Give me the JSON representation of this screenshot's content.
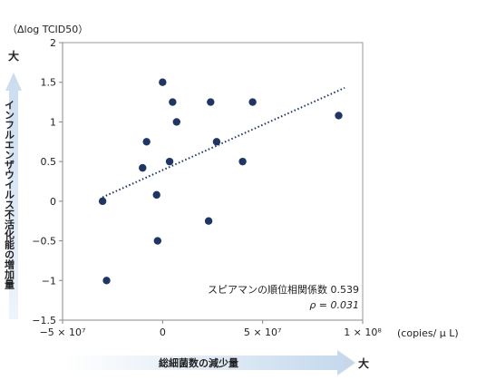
{
  "chart_data": {
    "type": "scatter",
    "x": [
      -30000000,
      -28000000,
      -10000000,
      -8000000,
      -3000000,
      -2500000,
      0,
      3500000,
      5000000,
      7000000,
      23000000,
      24000000,
      27000000,
      40000000,
      45000000,
      88000000
    ],
    "y": [
      0,
      -1.0,
      0.42,
      0.75,
      0.08,
      -0.5,
      1.5,
      0.5,
      1.25,
      1.0,
      -0.25,
      1.25,
      0.75,
      0.5,
      1.25,
      1.08
    ],
    "xlim": [
      -50000000,
      100000000
    ],
    "ylim": [
      -1.5,
      2
    ],
    "x_ticks": [
      -50000000,
      0,
      50000000,
      100000000
    ],
    "x_tick_labels": [
      "−5 × 10⁷",
      "0",
      "5 × 10⁷",
      "1 × 10⁸"
    ],
    "y_ticks": [
      2,
      1.5,
      1,
      0.5,
      0,
      -0.5,
      -1,
      -1.5
    ],
    "y_tick_labels": [
      "2",
      "1.5",
      "1",
      "0.5",
      "0",
      "−0.5",
      "−1",
      "−1.5"
    ],
    "trendline": {
      "style": "dotted",
      "x": [
        -30000000,
        91000000
      ],
      "y": [
        0.05,
        1.43
      ]
    },
    "ylabel_unit": "（Δlog TCID50）",
    "xlabel_unit": "(copies/ μ L)",
    "ylabel": "インフルエンザウイルス不活化能の増加量",
    "xlabel": "総細菌数の減少量",
    "big_label": "大",
    "stat_text": "スピアマンの順位相関係数 0.539",
    "rho_text": "ρ = 0.031",
    "grid": false,
    "colors": {
      "point": "#1f3564",
      "trend": "#1f3564",
      "arrow": "#d9e6f3"
    }
  }
}
